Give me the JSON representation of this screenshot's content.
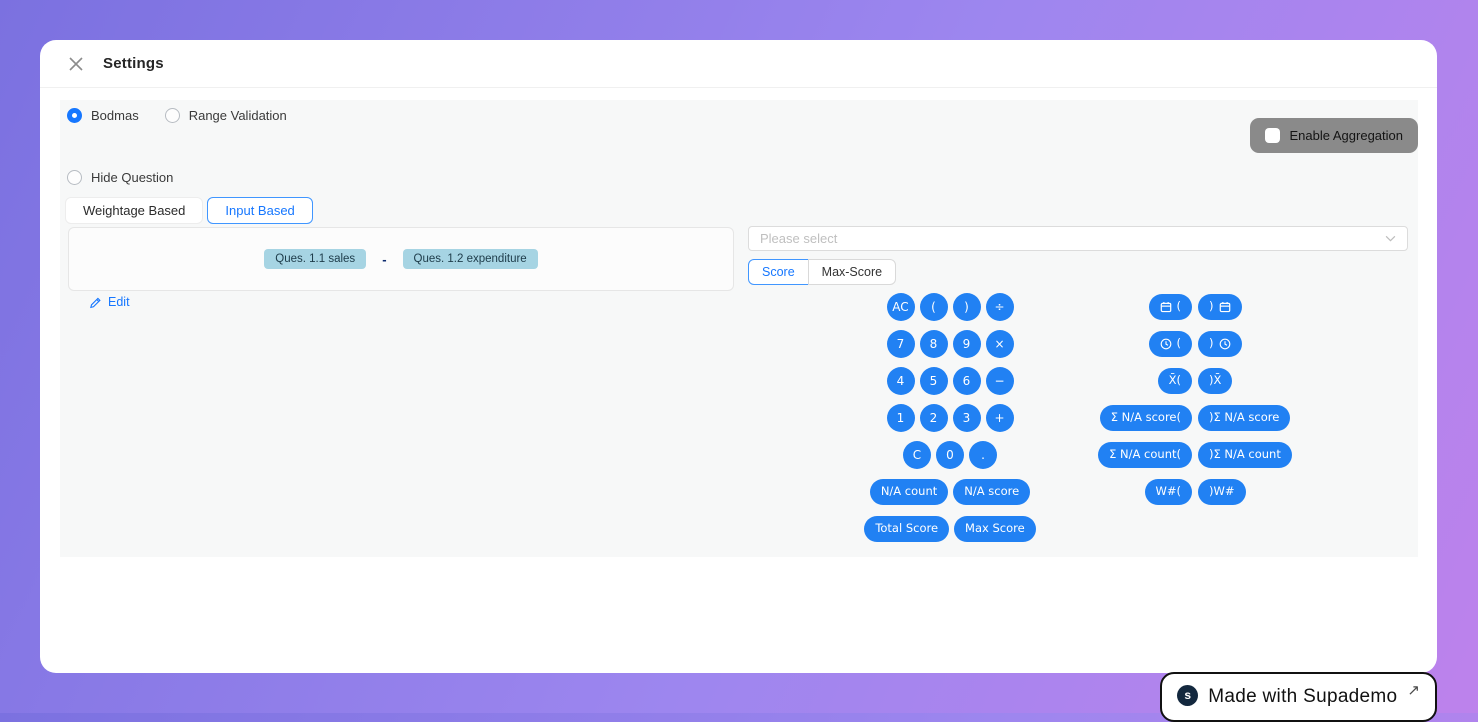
{
  "modal": {
    "title": "Settings"
  },
  "radios": {
    "bodmas": {
      "label": "Bodmas",
      "selected": true
    },
    "range_validation": {
      "label": "Range Validation",
      "selected": false
    },
    "hide_question": {
      "label": "Hide Question",
      "selected": false
    }
  },
  "aggregation": {
    "label": "Enable Aggregation",
    "checked": false
  },
  "tabs": {
    "weightage": "Weightage Based",
    "input": "Input Based",
    "selected": "Input Based"
  },
  "formula": {
    "tokens": [
      {
        "type": "chip",
        "text": "Ques. 1.1 sales"
      },
      {
        "type": "operator",
        "text": "-"
      },
      {
        "type": "chip",
        "text": "Ques. 1.2 expenditure"
      }
    ],
    "edit_label": "Edit"
  },
  "selector": {
    "placeholder": "Please select"
  },
  "score_tabs": {
    "options": [
      "Score",
      "Max-Score"
    ],
    "selected": "Score"
  },
  "calculator": {
    "left_rows": [
      [
        {
          "name": "key-ac",
          "label": "AC",
          "shape": "circle"
        },
        {
          "name": "key-open-paren",
          "label": "(",
          "shape": "circle"
        },
        {
          "name": "key-close-paren",
          "label": ")",
          "shape": "circle"
        },
        {
          "name": "key-divide",
          "label": "÷",
          "shape": "circle"
        }
      ],
      [
        {
          "name": "key-7",
          "label": "7",
          "shape": "circle"
        },
        {
          "name": "key-8",
          "label": "8",
          "shape": "circle"
        },
        {
          "name": "key-9",
          "label": "9",
          "shape": "circle"
        },
        {
          "name": "key-multiply",
          "label": "×",
          "shape": "circle"
        }
      ],
      [
        {
          "name": "key-4",
          "label": "4",
          "shape": "circle"
        },
        {
          "name": "key-5",
          "label": "5",
          "shape": "circle"
        },
        {
          "name": "key-6",
          "label": "6",
          "shape": "circle"
        },
        {
          "name": "key-minus",
          "label": "−",
          "shape": "circle"
        }
      ],
      [
        {
          "name": "key-1",
          "label": "1",
          "shape": "circle"
        },
        {
          "name": "key-2",
          "label": "2",
          "shape": "circle"
        },
        {
          "name": "key-3",
          "label": "3",
          "shape": "circle"
        },
        {
          "name": "key-plus",
          "label": "+",
          "shape": "circle"
        }
      ],
      [
        {
          "name": "key-c",
          "label": "C",
          "shape": "circle"
        },
        {
          "name": "key-0",
          "label": "0",
          "shape": "circle"
        },
        {
          "name": "key-dot",
          "label": ".",
          "shape": "circle"
        }
      ],
      [
        {
          "name": "key-na-count",
          "label": "N/A count",
          "shape": "pill"
        },
        {
          "name": "key-na-score",
          "label": "N/A score",
          "shape": "pill"
        }
      ],
      [
        {
          "name": "key-total-score",
          "label": "Total Score",
          "shape": "pill"
        },
        {
          "name": "key-max-score",
          "label": "Max Score",
          "shape": "pill"
        }
      ]
    ],
    "right_rows": [
      [
        {
          "name": "key-date-open",
          "icon": "calendar",
          "label": "(",
          "shape": "pill"
        },
        {
          "name": "key-date-close",
          "label": ")",
          "icon_after": "calendar",
          "shape": "pill"
        }
      ],
      [
        {
          "name": "key-time-open",
          "icon": "clock",
          "label": "(",
          "shape": "pill"
        },
        {
          "name": "key-time-close",
          "label": ")",
          "icon_after": "clock",
          "shape": "pill"
        }
      ],
      [
        {
          "name": "key-mean-open",
          "label": "X̄(",
          "shape": "pill"
        },
        {
          "name": "key-mean-close",
          "label": ")X̄",
          "shape": "pill"
        }
      ],
      [
        {
          "name": "key-sum-na-score-open",
          "label": "Σ N/A score(",
          "shape": "pill"
        },
        {
          "name": "key-sum-na-score-close",
          "label": ")Σ N/A score",
          "shape": "pill"
        }
      ],
      [
        {
          "name": "key-sum-na-count-open",
          "label": "Σ N/A count(",
          "shape": "pill"
        },
        {
          "name": "key-sum-na-count-close",
          "label": ")Σ N/A count",
          "shape": "pill"
        }
      ],
      [
        {
          "name": "key-weight-open",
          "label": "W#(",
          "shape": "pill"
        },
        {
          "name": "key-weight-close",
          "label": ")W#",
          "shape": "pill"
        }
      ]
    ]
  },
  "badge": {
    "logo": "s",
    "text": "Made with Supademo",
    "arrow": "↗"
  },
  "icons": {
    "close": "x-cross",
    "edit": "pencil",
    "select": "chevron-down",
    "calendar": "calendar",
    "clock": "clock"
  },
  "colors": {
    "accent_blue": "#2181f3",
    "link_blue": "#1677ff",
    "chip_blue": "#a6d4e3",
    "aggregation_gray": "#8a8a8a",
    "panel_gray": "#f7f8f8",
    "background_gradient_start": "#7b71e0",
    "background_gradient_end": "#bd82ec"
  }
}
